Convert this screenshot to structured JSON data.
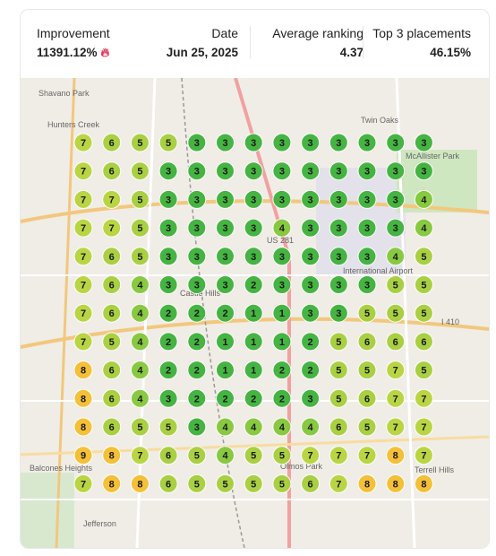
{
  "header": {
    "stats": [
      {
        "label": "Improvement",
        "value": "11391.12%"
      },
      {
        "label": "Date",
        "value": "Jun 25, 2025"
      },
      {
        "label": "Average ranking",
        "value": "4.37"
      },
      {
        "label": "Top 3 placements",
        "value": "46.15%"
      }
    ]
  },
  "map": {
    "labels": [
      "Shavano Park",
      "Hunters Creek",
      "Twin Oaks",
      "McAllister Park",
      "Castle Hills",
      "International Airport",
      "Balcones Heights",
      "Olmos Park",
      "Terrell Hills",
      "Jefferson",
      "US 281",
      "I 410"
    ]
  },
  "grid": {
    "rows": [
      [
        7,
        6,
        5,
        5,
        3,
        3,
        3,
        3,
        3,
        3,
        3,
        3,
        3
      ],
      [
        7,
        6,
        5,
        3,
        3,
        3,
        3,
        3,
        3,
        3,
        3,
        3,
        3
      ],
      [
        7,
        7,
        5,
        3,
        3,
        3,
        3,
        3,
        3,
        3,
        3,
        3,
        4
      ],
      [
        7,
        7,
        5,
        3,
        3,
        3,
        3,
        4,
        3,
        3,
        3,
        3,
        4
      ],
      [
        7,
        6,
        5,
        3,
        3,
        3,
        3,
        3,
        3,
        3,
        3,
        4,
        5
      ],
      [
        7,
        6,
        4,
        3,
        3,
        3,
        2,
        3,
        3,
        3,
        3,
        5,
        5
      ],
      [
        7,
        6,
        4,
        2,
        2,
        2,
        1,
        1,
        3,
        3,
        5,
        5,
        5
      ],
      [
        7,
        5,
        4,
        2,
        2,
        1,
        1,
        1,
        2,
        5,
        6,
        6,
        6
      ],
      [
        8,
        6,
        4,
        2,
        2,
        1,
        1,
        2,
        2,
        5,
        5,
        7,
        5
      ],
      [
        8,
        6,
        4,
        3,
        2,
        2,
        2,
        2,
        3,
        5,
        6,
        7,
        7
      ],
      [
        8,
        6,
        5,
        5,
        3,
        4,
        4,
        4,
        4,
        6,
        5,
        7,
        7
      ],
      [
        9,
        8,
        7,
        6,
        5,
        4,
        5,
        5,
        7,
        7,
        7,
        8,
        7
      ],
      [
        7,
        8,
        8,
        6,
        5,
        5,
        5,
        5,
        6,
        7,
        8,
        8,
        8
      ]
    ]
  }
}
